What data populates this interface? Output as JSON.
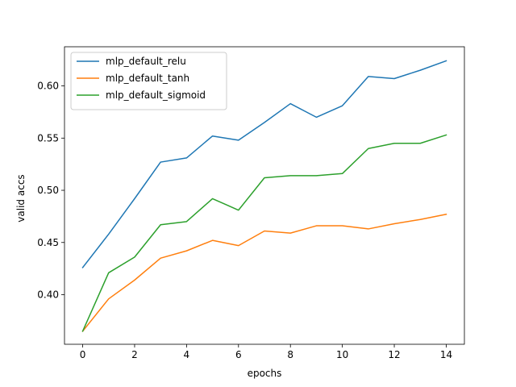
{
  "chart_data": {
    "type": "line",
    "title": "",
    "xlabel": "epochs",
    "ylabel": "valid accs",
    "x": [
      0,
      1,
      2,
      3,
      4,
      5,
      6,
      7,
      8,
      9,
      10,
      11,
      12,
      13,
      14
    ],
    "xlim": [
      -0.7,
      14.7
    ],
    "ylim": [
      0.3525,
      0.6375
    ],
    "xticks": [
      0,
      2,
      4,
      6,
      8,
      10,
      12,
      14
    ],
    "yticks": [
      0.4,
      0.45,
      0.5,
      0.55,
      0.6
    ],
    "ytick_labels": [
      "0.40",
      "0.45",
      "0.50",
      "0.55",
      "0.60"
    ],
    "grid": false,
    "legend_position": "top-left",
    "series": [
      {
        "name": "mlp_default_relu",
        "color": "#1f77b4",
        "values": [
          0.426,
          0.458,
          0.492,
          0.527,
          0.531,
          0.552,
          0.548,
          0.565,
          0.583,
          0.57,
          0.581,
          0.609,
          0.607,
          0.615,
          0.624
        ]
      },
      {
        "name": "mlp_default_tanh",
        "color": "#ff7f0e",
        "values": [
          0.365,
          0.396,
          0.414,
          0.435,
          0.442,
          0.452,
          0.447,
          0.461,
          0.459,
          0.466,
          0.466,
          0.463,
          0.468,
          0.472,
          0.477
        ]
      },
      {
        "name": "mlp_default_sigmoid",
        "color": "#2ca02c",
        "values": [
          0.365,
          0.421,
          0.436,
          0.467,
          0.47,
          0.492,
          0.481,
          0.512,
          0.514,
          0.514,
          0.516,
          0.54,
          0.545,
          0.545,
          0.553
        ]
      }
    ]
  }
}
